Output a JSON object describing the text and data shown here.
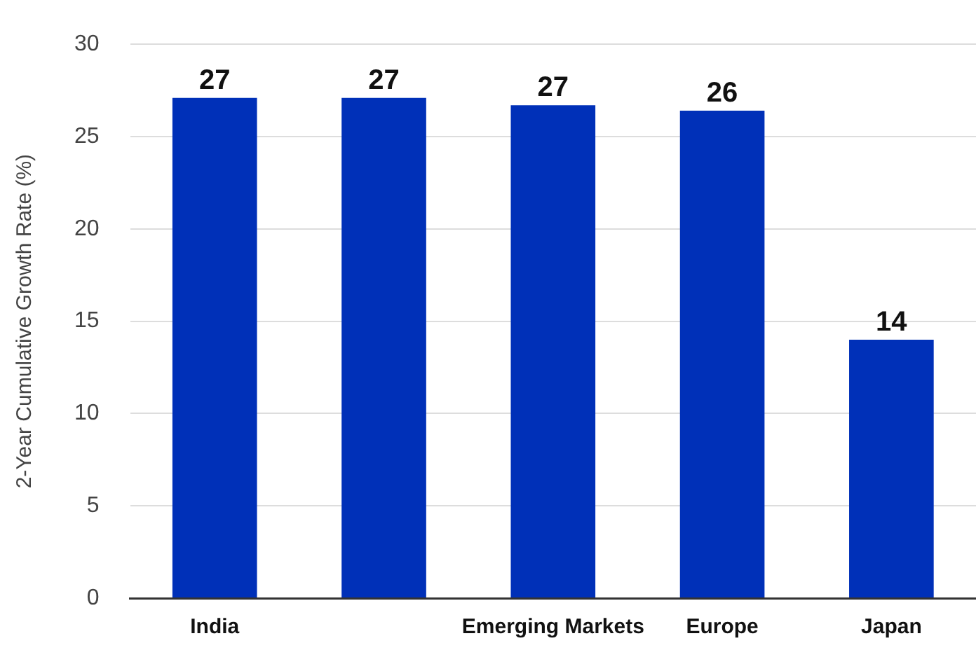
{
  "chart_data": {
    "type": "bar",
    "ylabel": "2-Year Cumulative Growth Rate (%)",
    "categories": [
      "India",
      null,
      "Emerging Markets",
      "Europe",
      "Japan"
    ],
    "values": [
      27.1,
      27.1,
      26.7,
      26.4,
      14
    ],
    "value_labels": [
      "27",
      "27",
      "27",
      "26",
      "14"
    ],
    "color": "#0030b8",
    "ylim": [
      0,
      30
    ],
    "yticks": [
      0,
      5,
      10,
      15,
      20,
      25,
      30
    ],
    "grid": "y",
    "legend": false
  }
}
